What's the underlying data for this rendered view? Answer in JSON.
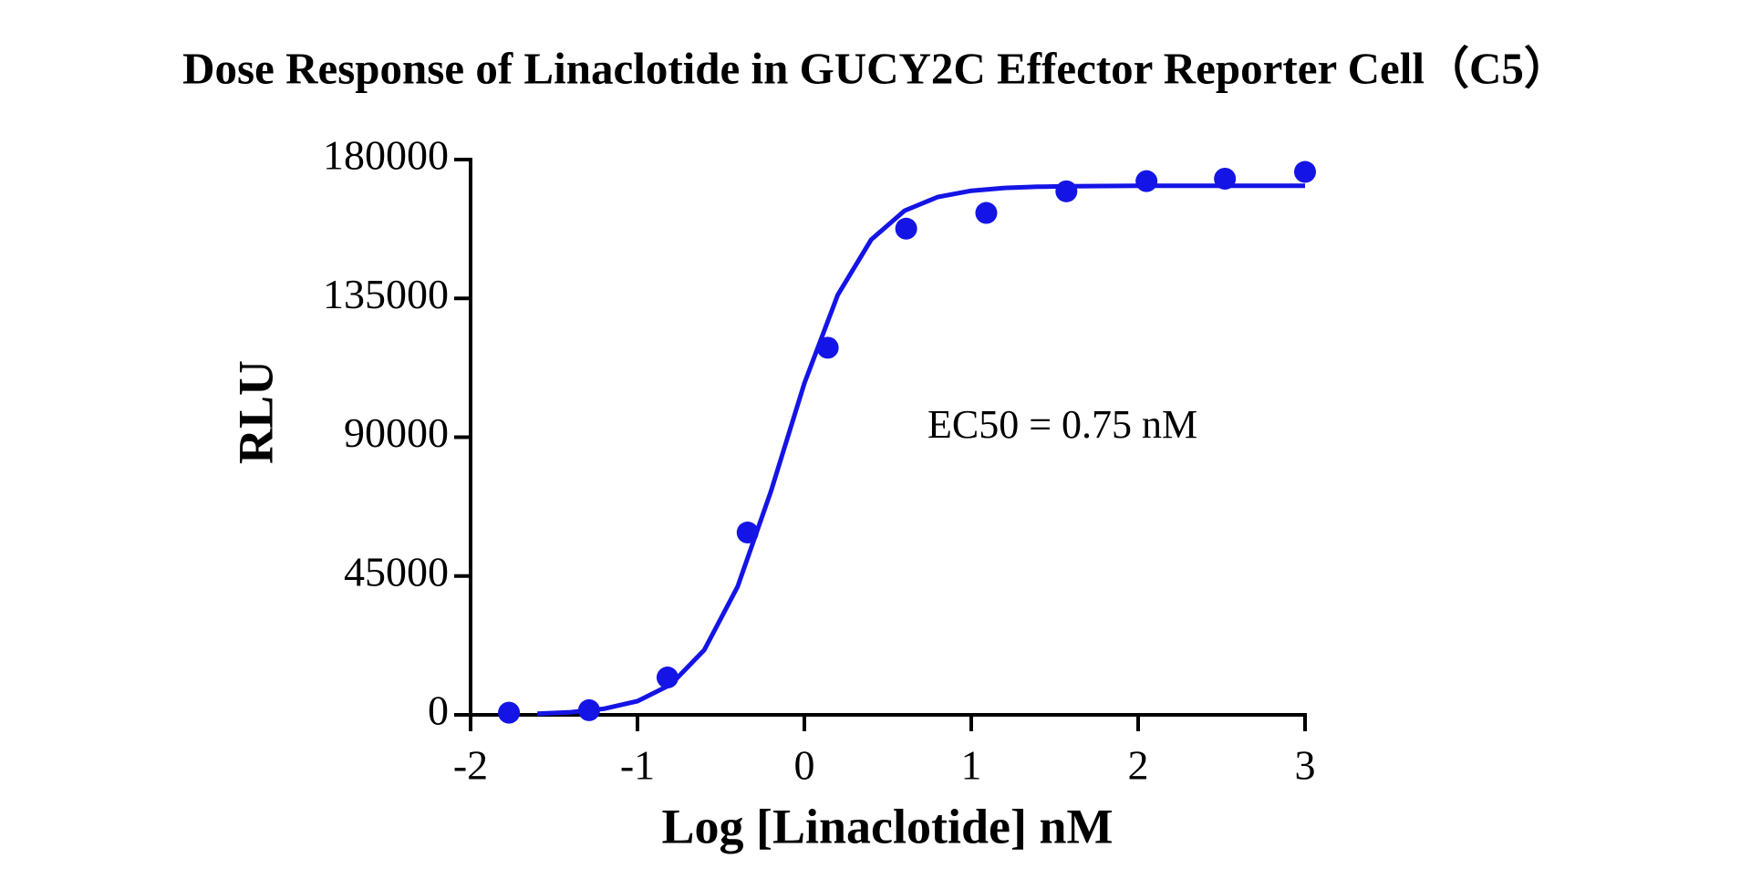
{
  "chart_data": {
    "type": "scatter",
    "title": "Dose Response of Linaclotide in GUCY2C Effector Reporter Cell（C5）",
    "x_label": "Log [Linaclotide] nM",
    "y_label": "RLU",
    "annotation": "EC50 = 0.75 nM",
    "x": [
      -1.77,
      -1.29,
      -0.82,
      -0.34,
      0.14,
      0.61,
      1.09,
      1.57,
      2.05,
      2.52,
      3.0
    ],
    "series": [
      {
        "color": "#1414e6",
        "values": [
          700,
          1500,
          12100,
          59100,
          119000,
          157600,
          162700,
          169700,
          173000,
          173800,
          176000
        ]
      }
    ],
    "fit": {
      "color": "#1414e6",
      "x": [
        -1.6,
        -1.4,
        -1.2,
        -1.0,
        -0.8,
        -0.6,
        -0.4,
        -0.2,
        0.0,
        0.2,
        0.4,
        0.6,
        0.8,
        1.0,
        1.2,
        1.4,
        1.6,
        1.8,
        2.0,
        2.2,
        2.4,
        2.6,
        2.8,
        3.0
      ],
      "values": [
        379,
        867,
        1969,
        4443,
        9856,
        21017,
        41565,
        72516,
        107456,
        136111,
        154020,
        163410,
        167874,
        169896,
        170796,
        171192,
        171365,
        171441,
        171474,
        171489,
        171495,
        171498,
        171499,
        171500
      ]
    },
    "xlim": [
      -2,
      3
    ],
    "xticks": [
      -2,
      -1,
      0,
      1,
      2,
      3
    ],
    "ylim": [
      0,
      180000
    ],
    "yticks": [
      0,
      45000,
      90000,
      135000,
      180000
    ]
  }
}
